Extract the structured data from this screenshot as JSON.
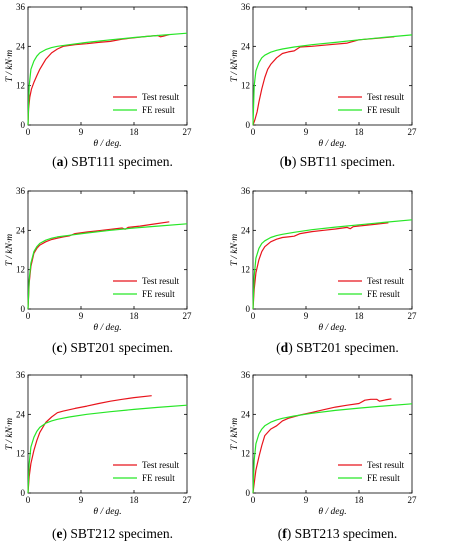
{
  "legend": {
    "test": "Test result",
    "fe": "FE  result"
  },
  "colors": {
    "test": "#e8141c",
    "fe": "#27e627"
  },
  "chart_data": [
    {
      "type": "line",
      "caption_id": "a",
      "caption_rest": " SBT111 specimen.",
      "xlabel": "θ / deg.",
      "ylabel": "T / kN·m",
      "xlim": [
        0,
        27
      ],
      "ylim": [
        0,
        36
      ],
      "xticks": [
        0,
        9,
        18,
        27
      ],
      "yticks": [
        0,
        12,
        24,
        36
      ],
      "series": [
        {
          "name": "Test result",
          "x": [
            0,
            0.1,
            0.3,
            0.6,
            1.0,
            1.5,
            2.0,
            2.5,
            3.0,
            4.0,
            5.0,
            6.0,
            8.0,
            10.0,
            12.0,
            14.0,
            16.0,
            18.0,
            20.0,
            22.0,
            22.5,
            23.0,
            24.0
          ],
          "y": [
            0,
            5.0,
            8.5,
            11.0,
            13.0,
            15.0,
            17.0,
            18.5,
            20.0,
            22.0,
            23.2,
            24.0,
            24.5,
            24.8,
            25.2,
            25.5,
            26.2,
            26.6,
            27.0,
            27.3,
            26.9,
            27.1,
            27.6
          ]
        },
        {
          "name": "FE  result",
          "x": [
            0,
            0.2,
            0.5,
            1.0,
            1.5,
            2.0,
            3.0,
            4.0,
            5.0,
            7.0,
            10.0,
            14.0,
            18.0,
            22.0,
            27.0
          ],
          "y": [
            0,
            12.0,
            17.0,
            19.5,
            21.0,
            22.0,
            23.0,
            23.6,
            24.0,
            24.5,
            25.2,
            26.0,
            26.7,
            27.3,
            28.0
          ]
        }
      ]
    },
    {
      "type": "line",
      "caption_id": "b",
      "caption_rest": " SBT11 specimen.",
      "xlabel": "θ / deg.",
      "ylabel": "T / kN·m",
      "xlim": [
        0,
        27
      ],
      "ylim": [
        0,
        36
      ],
      "xticks": [
        0,
        9,
        18,
        27
      ],
      "yticks": [
        0,
        12,
        24,
        36
      ],
      "series": [
        {
          "name": "Test result",
          "x": [
            0,
            0.3,
            0.7,
            1.0,
            1.5,
            2.0,
            2.5,
            3.0,
            4.0,
            5.0,
            6.0,
            7.0,
            8.0,
            10.0,
            13.0,
            16.0,
            18.0,
            20.0,
            22.0,
            24.0
          ],
          "y": [
            0,
            1.5,
            4.0,
            7.0,
            11.0,
            14.5,
            17.0,
            18.5,
            20.5,
            21.8,
            22.3,
            22.6,
            23.8,
            24.0,
            24.5,
            25.0,
            26.0,
            26.3,
            26.6,
            26.9
          ]
        },
        {
          "name": "FE  result",
          "x": [
            0,
            0.2,
            0.5,
            1.0,
            1.5,
            2.0,
            3.0,
            4.0,
            5.0,
            7.0,
            10.0,
            14.0,
            18.0,
            22.0,
            27.0
          ],
          "y": [
            0,
            12.0,
            16.5,
            19.0,
            20.5,
            21.3,
            22.2,
            22.8,
            23.2,
            23.8,
            24.5,
            25.2,
            26.0,
            26.7,
            27.5
          ]
        }
      ]
    },
    {
      "type": "line",
      "caption_id": "c",
      "caption_rest": " SBT201 specimen.",
      "xlabel": "θ / deg.",
      "ylabel": "T / kN·m",
      "xlim": [
        0,
        27
      ],
      "ylim": [
        0,
        36
      ],
      "xticks": [
        0,
        9,
        18,
        27
      ],
      "yticks": [
        0,
        12,
        24,
        36
      ],
      "series": [
        {
          "name": "Test result",
          "x": [
            0,
            0.2,
            0.5,
            1.0,
            1.5,
            2.0,
            3.0,
            4.0,
            5.0,
            6.0,
            7.0,
            8.0,
            10.0,
            12.0,
            14.0,
            16.0,
            16.5,
            17.0,
            19.0,
            21.0,
            24.0
          ],
          "y": [
            0,
            8.0,
            13.0,
            17.0,
            18.5,
            19.5,
            20.5,
            21.2,
            21.6,
            22.0,
            22.3,
            23.0,
            23.5,
            23.9,
            24.3,
            24.7,
            24.3,
            24.9,
            25.3,
            25.8,
            26.6
          ]
        },
        {
          "name": "FE  result",
          "x": [
            0,
            0.2,
            0.5,
            1.0,
            1.5,
            2.0,
            3.0,
            4.0,
            5.0,
            7.0,
            10.0,
            14.0,
            18.0,
            22.0,
            27.0
          ],
          "y": [
            0,
            9.0,
            14.0,
            17.5,
            19.0,
            20.0,
            21.0,
            21.6,
            22.0,
            22.5,
            23.2,
            24.0,
            24.7,
            25.3,
            26.0
          ]
        }
      ]
    },
    {
      "type": "line",
      "caption_id": "d",
      "caption_rest": " SBT201 specimen.",
      "xlabel": "θ / deg.",
      "ylabel": "T / kN·m",
      "xlim": [
        0,
        27
      ],
      "ylim": [
        0,
        36
      ],
      "xticks": [
        0,
        9,
        18,
        27
      ],
      "yticks": [
        0,
        12,
        24,
        36
      ],
      "series": [
        {
          "name": "Test result",
          "x": [
            0,
            0.2,
            0.5,
            1.0,
            1.5,
            2.0,
            3.0,
            4.0,
            5.0,
            6.0,
            7.0,
            8.0,
            10.0,
            12.0,
            14.0,
            16.0,
            16.5,
            17.0,
            19.0,
            21.0,
            23.0
          ],
          "y": [
            0,
            6.0,
            11.0,
            15.0,
            17.5,
            19.0,
            20.5,
            21.3,
            21.8,
            22.0,
            22.2,
            23.0,
            23.6,
            24.0,
            24.4,
            24.9,
            24.5,
            25.1,
            25.5,
            25.9,
            26.3
          ]
        },
        {
          "name": "FE  result",
          "x": [
            0,
            0.2,
            0.5,
            1.0,
            1.5,
            2.0,
            3.0,
            4.0,
            5.0,
            7.0,
            10.0,
            14.0,
            18.0,
            22.0,
            27.0
          ],
          "y": [
            0,
            10.0,
            15.5,
            18.5,
            20.0,
            20.8,
            21.8,
            22.4,
            22.8,
            23.4,
            24.2,
            25.0,
            25.7,
            26.4,
            27.2
          ]
        }
      ]
    },
    {
      "type": "line",
      "caption_id": "e",
      "caption_rest": " SBT212 specimen.",
      "xlabel": "θ / deg.",
      "ylabel": "T / kN·m",
      "xlim": [
        0,
        27
      ],
      "ylim": [
        0,
        36
      ],
      "xticks": [
        0,
        9,
        18,
        27
      ],
      "yticks": [
        0,
        12,
        24,
        36
      ],
      "series": [
        {
          "name": "Test result",
          "x": [
            0,
            0.2,
            0.5,
            1.0,
            1.5,
            2.0,
            3.0,
            4.0,
            5.0,
            6.0,
            8.0,
            10.0,
            12.0,
            14.0,
            16.0,
            18.0,
            21.0
          ],
          "y": [
            0,
            5.0,
            9.0,
            13.0,
            16.0,
            18.5,
            21.5,
            23.2,
            24.5,
            25.0,
            25.8,
            26.5,
            27.3,
            28.0,
            28.6,
            29.1,
            29.7
          ]
        },
        {
          "name": "FE  result",
          "x": [
            0,
            0.2,
            0.5,
            1.0,
            1.5,
            2.0,
            3.0,
            4.0,
            5.0,
            7.0,
            10.0,
            14.0,
            18.0,
            22.0,
            27.0
          ],
          "y": [
            0,
            9.0,
            14.0,
            17.0,
            18.8,
            20.0,
            21.3,
            22.0,
            22.5,
            23.2,
            24.0,
            24.8,
            25.5,
            26.1,
            26.8
          ]
        }
      ]
    },
    {
      "type": "line",
      "caption_id": "f",
      "caption_rest": " SBT213 specimen.",
      "xlabel": "θ / deg.",
      "ylabel": "T / kN·m",
      "xlim": [
        0,
        27
      ],
      "ylim": [
        0,
        36
      ],
      "xticks": [
        0,
        9,
        18,
        27
      ],
      "yticks": [
        0,
        12,
        24,
        36
      ],
      "series": [
        {
          "name": "Test result",
          "x": [
            0,
            0.2,
            0.5,
            1.0,
            1.5,
            2.0,
            3.0,
            4.0,
            5.0,
            6.0,
            8.0,
            10.0,
            12.0,
            14.0,
            16.0,
            18.0,
            19.0,
            20.0,
            21.0,
            21.5,
            22.5,
            23.5
          ],
          "y": [
            0,
            3.0,
            7.0,
            11.0,
            14.5,
            17.5,
            19.5,
            20.5,
            22.0,
            22.8,
            23.8,
            24.6,
            25.4,
            26.2,
            26.8,
            27.3,
            28.3,
            28.6,
            28.6,
            28.0,
            28.4,
            28.7
          ]
        },
        {
          "name": "FE  result",
          "x": [
            0,
            0.2,
            0.5,
            1.0,
            1.5,
            2.0,
            3.0,
            4.0,
            5.0,
            7.0,
            10.0,
            14.0,
            18.0,
            22.0,
            27.0
          ],
          "y": [
            0,
            10.0,
            15.0,
            18.0,
            19.5,
            20.5,
            21.6,
            22.3,
            22.8,
            23.5,
            24.3,
            25.2,
            25.9,
            26.5,
            27.2
          ]
        }
      ]
    }
  ]
}
